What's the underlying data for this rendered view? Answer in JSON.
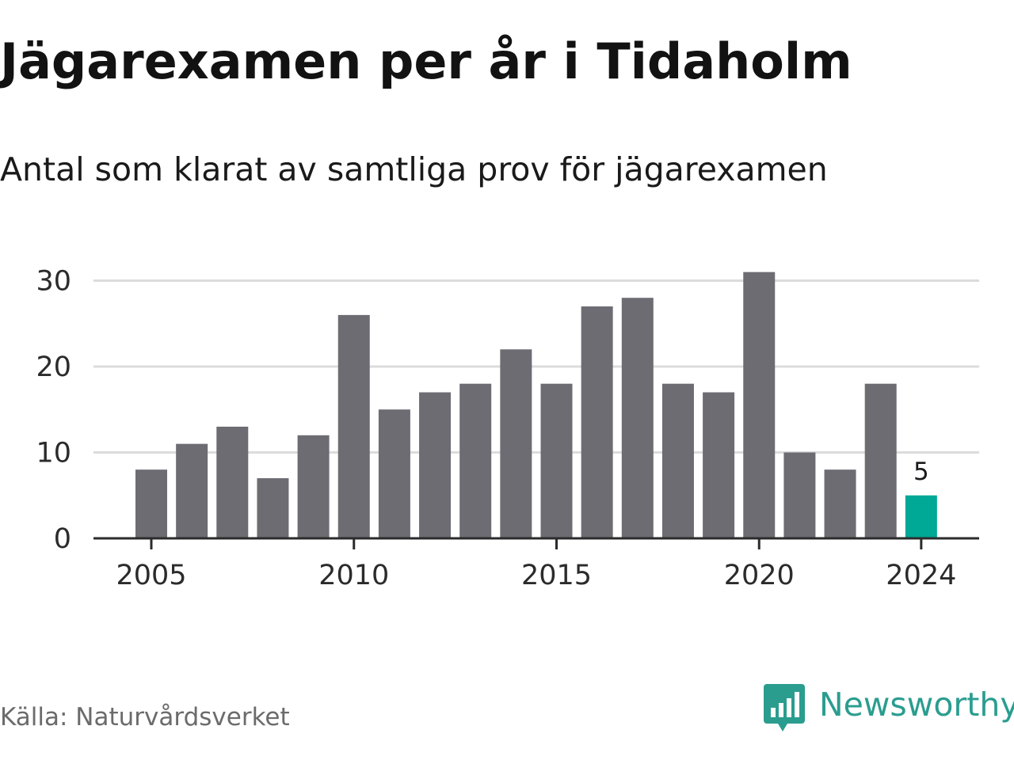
{
  "title": "Jägarexamen per år i Tidaholm",
  "subtitle": "Antal som klarat av samtliga prov för jägarexamen",
  "source": "Källa: Naturvårdsverket",
  "brand": {
    "name": "Newsworthy",
    "icon": "newsworthy-logo-icon",
    "color": "#2a9d8f"
  },
  "colors": {
    "bar": "#6d6c73",
    "highlight": "#00a896",
    "grid": "#dcdcdc",
    "axis": "#2b2b2b"
  },
  "chart_data": {
    "type": "bar",
    "title": "Jägarexamen per år i Tidaholm",
    "subtitle": "Antal som klarat av samtliga prov för jägarexamen",
    "xlabel": "",
    "ylabel": "",
    "categories": [
      "2005",
      "2006",
      "2007",
      "2008",
      "2009",
      "2010",
      "2011",
      "2012",
      "2013",
      "2014",
      "2015",
      "2016",
      "2017",
      "2018",
      "2019",
      "2020",
      "2021",
      "2022",
      "2023",
      "2024"
    ],
    "values": [
      8,
      11,
      13,
      7,
      12,
      26,
      15,
      17,
      18,
      22,
      18,
      27,
      28,
      18,
      17,
      31,
      10,
      8,
      18,
      5
    ],
    "ylim": [
      0,
      32
    ],
    "yticks": [
      0,
      10,
      20,
      30
    ],
    "xticks": [
      "2005",
      "2010",
      "2015",
      "2020",
      "2024"
    ],
    "highlight": {
      "category": "2024",
      "label": "5"
    },
    "grid": true,
    "legend": "none"
  }
}
